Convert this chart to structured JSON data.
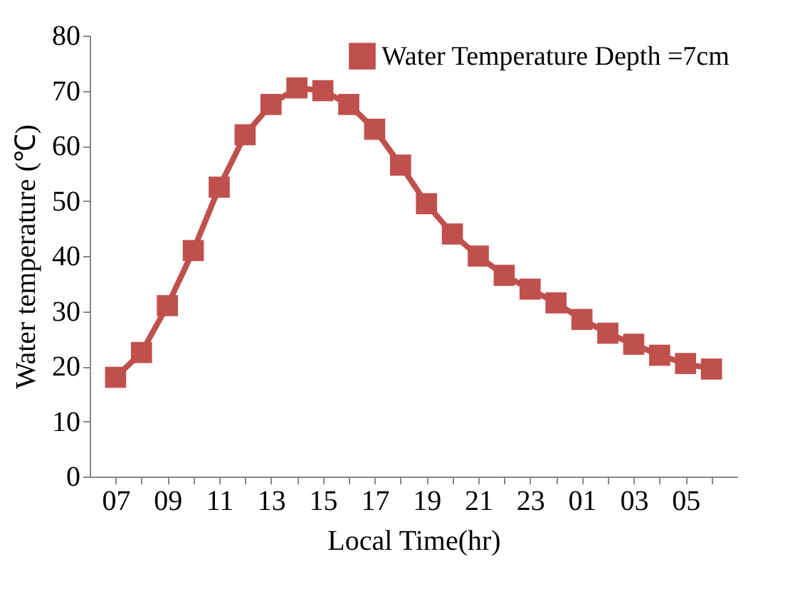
{
  "chart_data": {
    "type": "line",
    "xlabel": "Local Time(hr)",
    "ylabel": "Water temperature (℃)",
    "categories": [
      "07",
      null,
      "09",
      null,
      "11",
      null,
      "13",
      null,
      "15",
      null,
      "17",
      null,
      "19",
      null,
      "21",
      null,
      "23",
      null,
      "01",
      null,
      "03",
      null,
      "05",
      null
    ],
    "series": [
      {
        "name": "Water Temperature Depth =7cm",
        "color": "#c0504d",
        "values": [
          18,
          22.5,
          31,
          41,
          52.5,
          62,
          67.5,
          70.5,
          70,
          67.5,
          63,
          56.5,
          49.5,
          44,
          40,
          36.5,
          34,
          31.5,
          28.5,
          26,
          24,
          22,
          20.5,
          19.5
        ]
      }
    ],
    "ylim": [
      0,
      80
    ],
    "yticks": [
      0,
      10,
      20,
      30,
      40,
      50,
      60,
      70,
      80
    ],
    "grid": false,
    "legend": "top right",
    "marker": "square",
    "line_style": "solid"
  }
}
